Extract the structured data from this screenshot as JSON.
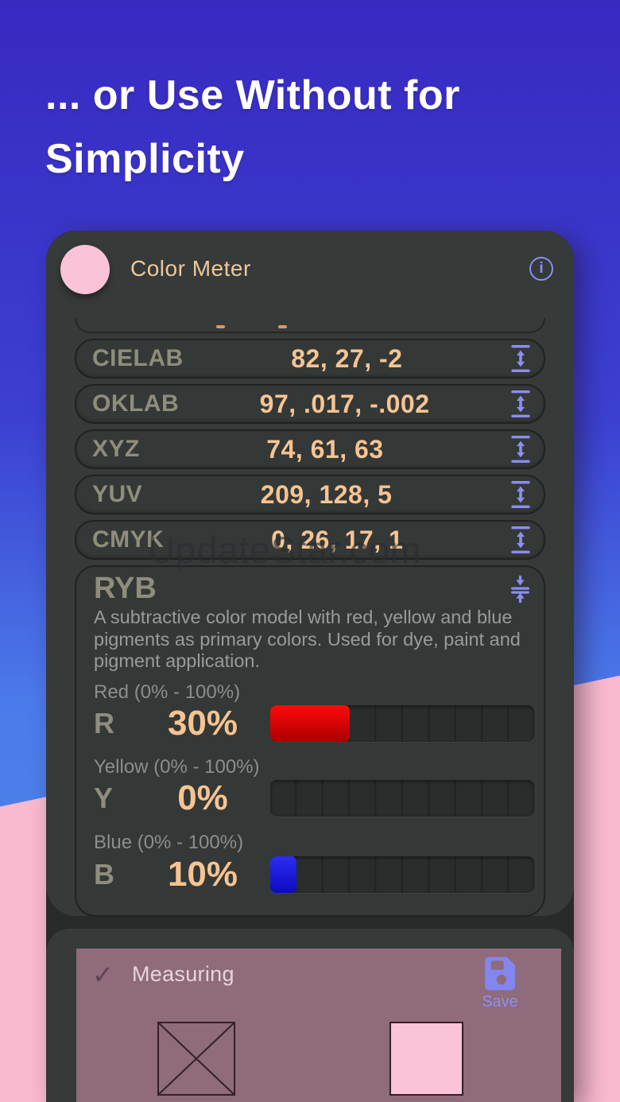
{
  "hero": {
    "line1": "... or Use Without for",
    "line2": "Simplicity"
  },
  "header": {
    "title": "Color Meter",
    "swatch_color": "#f8c3d5",
    "info_glyph": "i"
  },
  "color_rows": [
    {
      "label": "CIELAB",
      "value": "82, 27, -2"
    },
    {
      "label": "OKLAB",
      "value": "97, .017, -.002"
    },
    {
      "label": "XYZ",
      "value": "74, 61, 63"
    },
    {
      "label": "YUV",
      "value": "209, 128, 5"
    },
    {
      "label": "CMYK",
      "value": "0, 26, 17, 1"
    }
  ],
  "ryb": {
    "label": "RYB",
    "description": "A subtractive color model with red, yellow and blue pigments as primary colors. Used for dye, paint and pigment application.",
    "sliders": [
      {
        "letter": "R",
        "range_label": "Red (0% - 100%)",
        "value_label": "30%",
        "percent": 30,
        "fill_top": "#ff0a0a",
        "fill_bottom": "#ab0000"
      },
      {
        "letter": "Y",
        "range_label": "Yellow (0% - 100%)",
        "value_label": "0%",
        "percent": 0,
        "fill_top": "#ffd60a",
        "fill_bottom": "#c7a000"
      },
      {
        "letter": "B",
        "range_label": "Blue (0% - 100%)",
        "value_label": "10%",
        "percent": 10,
        "fill_top": "#2d2df5",
        "fill_bottom": "#0b0bbd"
      }
    ]
  },
  "watermark": "UpdateStar.com",
  "measure_panel": {
    "check_glyph": "✓",
    "status_label": "Measuring",
    "save_label": "Save",
    "measured_color": "#fac3d7",
    "panel_color": "#8f6b7b"
  },
  "colors": {
    "accent_purple": "#8b8ef2",
    "value_peach": "#f6c492",
    "label_olive": "#8f8d7b",
    "card_bg": "#363a39",
    "gradient_top": "#3829c1",
    "gradient_bottom": "#4b7bea",
    "pink_bg": "#f9b9ce"
  }
}
